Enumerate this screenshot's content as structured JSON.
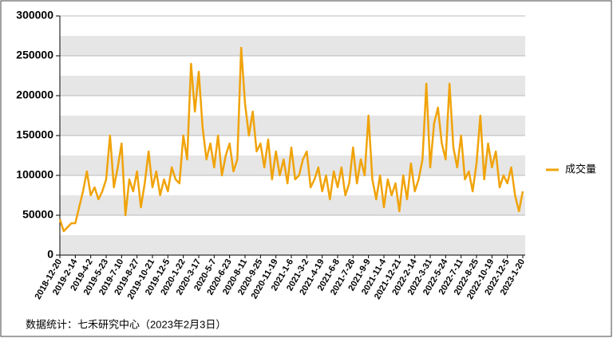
{
  "chart_data": {
    "type": "line",
    "legend_position": "right",
    "grid": true,
    "source": "数据统计：七禾研究中心（2023年2月3日）",
    "categories": [
      "2018-12-20",
      null,
      null,
      null,
      "2019-2-14",
      null,
      null,
      null,
      "2019-4-2",
      null,
      null,
      null,
      "2019-5-23",
      null,
      null,
      null,
      "2019-7-10",
      null,
      null,
      null,
      "2019-8-27",
      null,
      null,
      null,
      "2019-10-21",
      null,
      null,
      null,
      "2019-12-5",
      null,
      null,
      null,
      "2020-1-22",
      null,
      null,
      null,
      "2020-3-17",
      null,
      null,
      null,
      "2020-5-7",
      null,
      null,
      null,
      "2020-6-23",
      null,
      null,
      null,
      "2020-8-11",
      null,
      null,
      null,
      "2020-9-25",
      null,
      null,
      null,
      "2020-11-19",
      null,
      null,
      null,
      "2021-1-6",
      null,
      null,
      null,
      "2021-3-2",
      null,
      null,
      null,
      "2021-4-19",
      null,
      null,
      null,
      "2021-6-8",
      null,
      null,
      null,
      "2021-7-26",
      null,
      null,
      null,
      "2021-9-9",
      null,
      null,
      null,
      "2021-11-4",
      null,
      null,
      null,
      "2021-12-21",
      null,
      null,
      null,
      "2022-2-14",
      null,
      null,
      null,
      "2022-3-31",
      null,
      null,
      null,
      "2022-5-24",
      null,
      null,
      null,
      "2022-7-11",
      null,
      null,
      null,
      "2022-8-25",
      null,
      null,
      null,
      "2022-10-19",
      null,
      null,
      null,
      "2022-12-5",
      null,
      null,
      null,
      "2023-1-20"
    ],
    "series": [
      {
        "name": "成交量",
        "color": "#f0a30a",
        "values": [
          45000,
          30000,
          35000,
          40000,
          40000,
          60000,
          80000,
          105000,
          75000,
          85000,
          70000,
          80000,
          95000,
          150000,
          85000,
          110000,
          140000,
          50000,
          95000,
          80000,
          105000,
          60000,
          90000,
          130000,
          85000,
          105000,
          75000,
          95000,
          80000,
          110000,
          95000,
          90000,
          150000,
          120000,
          240000,
          180000,
          230000,
          160000,
          120000,
          140000,
          110000,
          150000,
          100000,
          125000,
          140000,
          105000,
          120000,
          260000,
          190000,
          150000,
          180000,
          130000,
          140000,
          110000,
          145000,
          95000,
          130000,
          100000,
          120000,
          90000,
          135000,
          95000,
          100000,
          120000,
          130000,
          85000,
          95000,
          110000,
          80000,
          100000,
          70000,
          105000,
          85000,
          110000,
          75000,
          90000,
          135000,
          90000,
          120000,
          100000,
          175000,
          95000,
          70000,
          100000,
          60000,
          95000,
          75000,
          90000,
          55000,
          100000,
          70000,
          115000,
          80000,
          95000,
          120000,
          215000,
          110000,
          165000,
          185000,
          140000,
          120000,
          215000,
          135000,
          110000,
          150000,
          95000,
          105000,
          80000,
          115000,
          175000,
          95000,
          140000,
          110000,
          130000,
          85000,
          100000,
          90000,
          110000,
          75000,
          55000,
          80000
        ]
      }
    ],
    "ylim": [
      0,
      300000
    ],
    "yticks": [
      0,
      50000,
      100000,
      150000,
      200000,
      250000,
      300000
    ]
  }
}
